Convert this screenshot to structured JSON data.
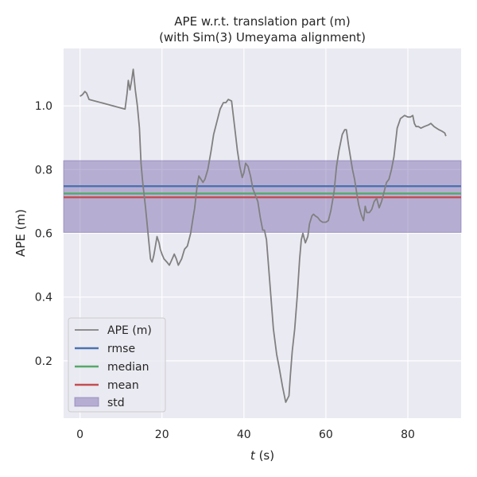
{
  "chart_data": {
    "type": "line",
    "title": "APE w.r.t. translation part (m)",
    "subtitle": "(with Sim(3) Umeyama alignment)",
    "xlabel_var": "t",
    "xlabel_unit": " (s)",
    "ylabel": "APE (m)",
    "xlim": [
      -4,
      93
    ],
    "ylim": [
      0.02,
      1.18
    ],
    "xticks": [
      0,
      20,
      40,
      60,
      80
    ],
    "yticks": [
      0.2,
      0.4,
      0.6,
      0.8,
      1.0
    ],
    "xtick_labels": [
      "0",
      "20",
      "40",
      "60",
      "80"
    ],
    "ytick_labels": [
      "0.2",
      "0.4",
      "0.6",
      "0.8",
      "1.0"
    ],
    "grid": true,
    "legend_position": "lower-left",
    "legend": [
      "APE (m)",
      "rmse",
      "median",
      "mean",
      "std"
    ],
    "colors": {
      "background": "#eaeaf2",
      "grid": "#ffffff",
      "ape": "#808080",
      "rmse": "#4c72b0",
      "median": "#55a868",
      "mean": "#c44e52",
      "std_fill": "#8172b2",
      "std_edge": "#8172b2"
    },
    "stats": {
      "rmse": 0.748,
      "median": 0.725,
      "mean": 0.713,
      "std_low": 0.603,
      "std_high": 0.828
    },
    "series": [
      {
        "name": "APE (m)",
        "x": [
          0,
          0.6,
          1.2,
          1.6,
          2.2,
          11,
          11.5,
          11.8,
          12.2,
          12.6,
          13.0,
          13.5,
          14.0,
          14.5,
          14.9,
          15.3,
          16.0,
          16.6,
          17.2,
          17.6,
          18.0,
          18.4,
          18.8,
          19.3,
          19.6,
          20.0,
          20.5,
          21.2,
          21.8,
          22.5,
          23.0,
          23.5,
          24.0,
          24.4,
          24.8,
          25.5,
          26.2,
          27.0,
          27.6,
          28.0,
          28.6,
          29.0,
          29.5,
          30.0,
          30.5,
          31.2,
          32.0,
          32.6,
          33.4,
          34.2,
          35.0,
          35.6,
          36.2,
          37.0,
          37.6,
          38.4,
          39.0,
          39.6,
          40.0,
          40.4,
          41.0,
          41.6,
          42.2,
          42.8,
          43.4,
          44.0,
          44.6,
          45.0,
          45.5,
          46.0,
          46.6,
          47.2,
          48.0,
          48.6,
          49.4,
          50.2,
          51.0,
          51.3,
          51.8,
          52.4,
          53.0,
          53.6,
          54.0,
          54.4,
          55.0,
          55.6,
          56.0,
          56.6,
          57.0,
          57.4,
          58.0,
          58.6,
          59.2,
          60.0,
          60.6,
          61.2,
          62.0,
          62.6,
          63.2,
          64.0,
          64.6,
          65.0,
          65.5,
          66.0,
          66.5,
          67.0,
          67.6,
          68.0,
          68.6,
          69.2,
          69.6,
          70.0,
          70.6,
          71.2,
          71.8,
          72.4,
          73.0,
          73.6,
          74.2,
          74.8,
          75.4,
          76.0,
          76.6,
          77.4,
          78.2,
          79.2,
          80.0,
          80.6,
          81.2,
          81.6,
          82.0,
          82.6,
          83.2,
          84.0,
          85.0,
          85.6,
          86.4,
          87.0,
          87.6,
          88.4,
          89.0,
          89.3
        ],
        "values": [
          1.03,
          1.035,
          1.045,
          1.04,
          1.02,
          0.99,
          1.04,
          1.08,
          1.05,
          1.08,
          1.115,
          1.05,
          1.0,
          0.93,
          0.82,
          0.76,
          0.68,
          0.6,
          0.52,
          0.51,
          0.53,
          0.56,
          0.59,
          0.57,
          0.55,
          0.535,
          0.52,
          0.51,
          0.5,
          0.52,
          0.535,
          0.52,
          0.5,
          0.51,
          0.52,
          0.55,
          0.56,
          0.6,
          0.65,
          0.68,
          0.75,
          0.78,
          0.77,
          0.76,
          0.77,
          0.8,
          0.86,
          0.91,
          0.95,
          0.99,
          1.01,
          1.01,
          1.02,
          1.015,
          0.95,
          0.86,
          0.81,
          0.775,
          0.79,
          0.82,
          0.81,
          0.78,
          0.74,
          0.72,
          0.7,
          0.65,
          0.61,
          0.61,
          0.58,
          0.5,
          0.4,
          0.3,
          0.22,
          0.18,
          0.12,
          0.07,
          0.09,
          0.15,
          0.23,
          0.3,
          0.4,
          0.52,
          0.58,
          0.6,
          0.57,
          0.59,
          0.63,
          0.655,
          0.66,
          0.655,
          0.65,
          0.64,
          0.635,
          0.635,
          0.64,
          0.67,
          0.73,
          0.81,
          0.86,
          0.91,
          0.925,
          0.925,
          0.88,
          0.84,
          0.8,
          0.77,
          0.72,
          0.69,
          0.66,
          0.64,
          0.685,
          0.665,
          0.665,
          0.675,
          0.7,
          0.71,
          0.68,
          0.7,
          0.73,
          0.76,
          0.77,
          0.8,
          0.84,
          0.93,
          0.96,
          0.97,
          0.965,
          0.965,
          0.97,
          0.945,
          0.935,
          0.935,
          0.93,
          0.935,
          0.94,
          0.945,
          0.935,
          0.93,
          0.925,
          0.92,
          0.915,
          0.905
        ]
      }
    ]
  }
}
